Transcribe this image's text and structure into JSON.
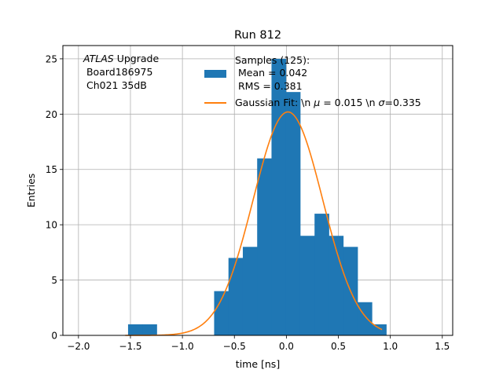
{
  "chart_data": {
    "type": "bar",
    "title": "Run 812",
    "xlabel": "time [ns]",
    "ylabel": "Entries",
    "xlim": [
      -2.15,
      1.6
    ],
    "ylim": [
      0,
      26.2
    ],
    "xticks": [
      -2.0,
      -1.5,
      -1.0,
      -0.5,
      0.0,
      0.5,
      1.0,
      1.5
    ],
    "xtick_labels": [
      "−2.0",
      "−1.5",
      "−1.0",
      "−0.5",
      "0.0",
      "0.5",
      "1.0",
      "1.5"
    ],
    "yticks": [
      0,
      5,
      10,
      15,
      20,
      25
    ],
    "ytick_labels": [
      "0",
      "5",
      "10",
      "15",
      "20",
      "25"
    ],
    "grid": true,
    "bin_width": 0.138,
    "histogram": [
      {
        "x": -1.523,
        "count": 1
      },
      {
        "x": -1.385,
        "count": 1
      },
      {
        "x": -0.695,
        "count": 4
      },
      {
        "x": -0.557,
        "count": 7
      },
      {
        "x": -0.419,
        "count": 8
      },
      {
        "x": -0.281,
        "count": 16
      },
      {
        "x": -0.143,
        "count": 25
      },
      {
        "x": -0.005,
        "count": 22
      },
      {
        "x": 0.133,
        "count": 9
      },
      {
        "x": 0.271,
        "count": 11
      },
      {
        "x": 0.409,
        "count": 9
      },
      {
        "x": 0.547,
        "count": 8
      },
      {
        "x": 0.685,
        "count": 3
      },
      {
        "x": 0.823,
        "count": 1
      }
    ],
    "fit": {
      "mu": 0.015,
      "sigma": 0.335,
      "amplitude": 20.2,
      "x_range": [
        -1.55,
        0.92
      ]
    },
    "series": [
      {
        "name_lines": [
          "Samples (125):",
          " Mean = 0.042",
          " RMS = 0.381"
        ],
        "color": "#1f77b4",
        "kind": "histogram"
      },
      {
        "name": "Gaussian Fit: \\n $\\mu$ = 0.015 \\n $\\sigma$=0.335",
        "color": "#ff7f0e",
        "kind": "line"
      }
    ],
    "legend_placement": "upper-center",
    "annotation": {
      "line1_italic": "ATLAS",
      "line1_rest": " Upgrade",
      "line2": " Board186975",
      "line3": " Ch021 35dB"
    },
    "legend_labels": {
      "hist_lines": [
        "Samples (125):",
        " Mean = 0.042",
        " RMS = 0.381"
      ],
      "fit_prefix": "Gaussian Fit: \\n ",
      "fit_mu": "μ",
      "fit_mid": " = 0.015 \\n ",
      "fit_sigma": "σ",
      "fit_suffix": "=0.335"
    }
  }
}
